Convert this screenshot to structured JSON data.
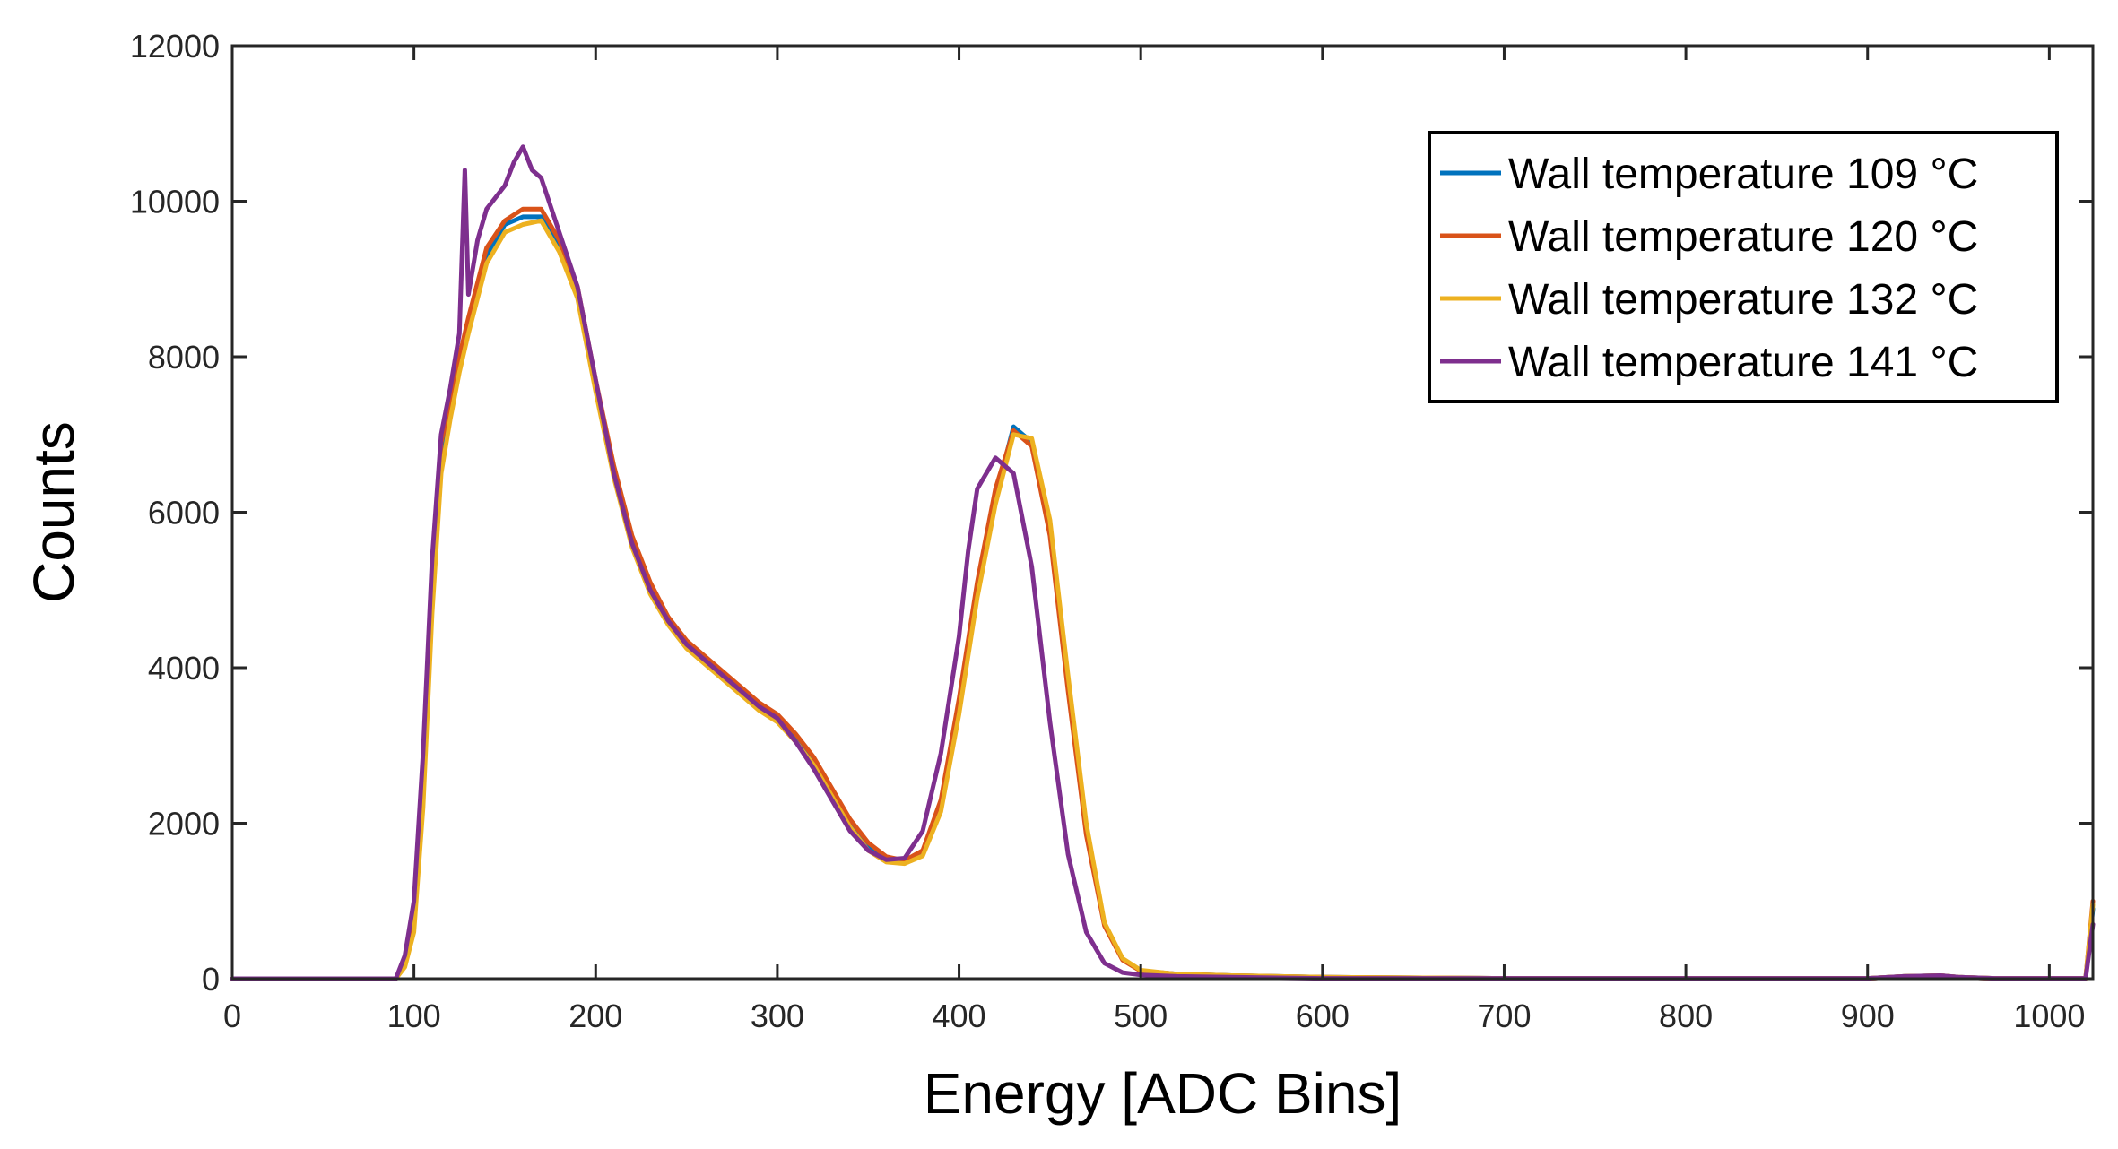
{
  "chart_data": {
    "type": "line",
    "title": "",
    "xlabel": "Energy [ADC Bins]",
    "ylabel": "Counts",
    "xlim": [
      0,
      1024
    ],
    "ylim": [
      0,
      12000
    ],
    "xticks": [
      0,
      100,
      200,
      300,
      400,
      500,
      600,
      700,
      800,
      900,
      1000
    ],
    "yticks": [
      0,
      2000,
      4000,
      6000,
      8000,
      10000,
      12000
    ],
    "legend_position": "top-right",
    "grid": false,
    "series": [
      {
        "name": "Wall temperature 109 °C",
        "color": "#0072BD",
        "x": [
          0,
          90,
          95,
          100,
          105,
          110,
          115,
          120,
          125,
          130,
          140,
          150,
          160,
          170,
          180,
          190,
          200,
          210,
          220,
          230,
          240,
          250,
          260,
          270,
          280,
          290,
          300,
          310,
          320,
          330,
          340,
          350,
          360,
          370,
          380,
          390,
          400,
          410,
          420,
          430,
          440,
          450,
          460,
          470,
          480,
          490,
          500,
          520,
          550,
          600,
          700,
          800,
          900,
          920,
          940,
          950,
          970,
          1000,
          1020,
          1024
        ],
        "y": [
          0,
          0,
          200,
          800,
          2500,
          5000,
          6700,
          7300,
          7900,
          8400,
          9300,
          9700,
          9800,
          9800,
          9400,
          8800,
          7600,
          6500,
          5600,
          5000,
          4600,
          4300,
          4100,
          3900,
          3700,
          3500,
          3350,
          3100,
          2800,
          2400,
          2000,
          1700,
          1550,
          1500,
          1600,
          2200,
          3500,
          5000,
          6200,
          7100,
          6900,
          5800,
          3800,
          1900,
          700,
          250,
          100,
          60,
          40,
          20,
          5,
          5,
          5,
          30,
          40,
          20,
          5,
          5,
          5,
          900
        ]
      },
      {
        "name": "Wall temperature 120 °C",
        "color": "#D95319",
        "x": [
          0,
          90,
          95,
          100,
          105,
          110,
          115,
          120,
          125,
          130,
          140,
          150,
          160,
          170,
          180,
          190,
          200,
          210,
          220,
          230,
          240,
          250,
          260,
          270,
          280,
          290,
          300,
          310,
          320,
          330,
          340,
          350,
          360,
          370,
          380,
          390,
          400,
          410,
          420,
          430,
          440,
          450,
          460,
          470,
          480,
          490,
          500,
          520,
          550,
          600,
          700,
          800,
          900,
          920,
          940,
          950,
          970,
          1000,
          1020,
          1024
        ],
        "y": [
          0,
          0,
          250,
          900,
          2700,
          5300,
          6900,
          7400,
          8000,
          8500,
          9400,
          9750,
          9900,
          9900,
          9500,
          8900,
          7700,
          6600,
          5700,
          5100,
          4650,
          4350,
          4150,
          3950,
          3750,
          3550,
          3400,
          3150,
          2850,
          2450,
          2050,
          1750,
          1570,
          1520,
          1650,
          2300,
          3600,
          5100,
          6300,
          7050,
          6850,
          5700,
          3700,
          1850,
          680,
          240,
          100,
          60,
          40,
          20,
          5,
          5,
          5,
          30,
          40,
          20,
          5,
          5,
          5,
          1000
        ]
      },
      {
        "name": "Wall temperature 132 °C",
        "color": "#EDB120",
        "x": [
          0,
          90,
          95,
          100,
          105,
          110,
          115,
          120,
          125,
          130,
          140,
          150,
          160,
          170,
          180,
          190,
          200,
          210,
          220,
          230,
          240,
          250,
          260,
          270,
          280,
          290,
          300,
          310,
          320,
          330,
          340,
          350,
          360,
          370,
          380,
          390,
          400,
          410,
          420,
          430,
          440,
          450,
          460,
          470,
          480,
          490,
          500,
          520,
          550,
          600,
          700,
          800,
          900,
          920,
          940,
          950,
          970,
          1000,
          1020,
          1024
        ],
        "y": [
          0,
          0,
          150,
          600,
          2200,
          4700,
          6500,
          7200,
          7800,
          8300,
          9200,
          9600,
          9700,
          9750,
          9350,
          8750,
          7550,
          6450,
          5550,
          4950,
          4550,
          4250,
          4050,
          3850,
          3650,
          3450,
          3300,
          3050,
          2750,
          2350,
          1950,
          1650,
          1500,
          1480,
          1580,
          2150,
          3400,
          4900,
          6100,
          7000,
          6950,
          5900,
          3900,
          2000,
          720,
          260,
          110,
          60,
          40,
          20,
          5,
          5,
          5,
          30,
          40,
          20,
          5,
          5,
          5,
          950
        ]
      },
      {
        "name": "Wall temperature 141 °C",
        "color": "#7E2F8E",
        "x": [
          0,
          90,
          95,
          100,
          105,
          110,
          115,
          120,
          125,
          128,
          130,
          135,
          140,
          150,
          155,
          160,
          165,
          170,
          180,
          190,
          200,
          210,
          220,
          230,
          240,
          250,
          260,
          270,
          280,
          290,
          300,
          310,
          320,
          330,
          340,
          350,
          360,
          370,
          380,
          390,
          400,
          405,
          410,
          420,
          430,
          440,
          450,
          460,
          470,
          480,
          490,
          500,
          520,
          550,
          600,
          700,
          800,
          900,
          920,
          940,
          950,
          970,
          1000,
          1020,
          1024
        ],
        "y": [
          0,
          0,
          300,
          1000,
          2900,
          5400,
          7000,
          7600,
          8300,
          10400,
          8800,
          9500,
          9900,
          10200,
          10500,
          10700,
          10400,
          10300,
          9600,
          8900,
          7700,
          6500,
          5600,
          5000,
          4600,
          4300,
          4100,
          3900,
          3700,
          3500,
          3350,
          3050,
          2700,
          2300,
          1900,
          1650,
          1530,
          1550,
          1900,
          2900,
          4400,
          5500,
          6300,
          6700,
          6500,
          5300,
          3300,
          1600,
          600,
          200,
          80,
          50,
          30,
          20,
          5,
          5,
          5,
          5,
          30,
          40,
          20,
          5,
          5,
          5,
          700
        ]
      }
    ]
  }
}
